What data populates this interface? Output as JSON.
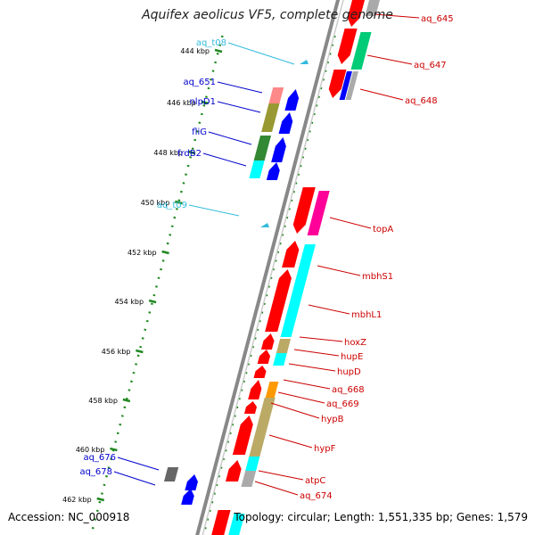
{
  "title": "Aquifex aeolicus VF5, complete genome",
  "footer": {
    "accession": "Accession: NC_000918",
    "topology": "Topology: circular; Length: 1,551,335 bp; Genes: 1,579"
  },
  "kbp_ticks": [
    "444 kbp",
    "446 kbp",
    "448 kbp",
    "450 kbp",
    "452 kbp",
    "454 kbp",
    "456 kbp",
    "458 kbp",
    "460 kbp",
    "462 kbp"
  ],
  "labels_right": [
    "aq_645",
    "aq_647",
    "aq_648",
    "topA",
    "mbhS1",
    "mbhL1",
    "hoxZ",
    "hupE",
    "hupD",
    "aq_668",
    "aq_669",
    "hypB",
    "hypF",
    "atpC",
    "aq_674"
  ],
  "labels_left": [
    "aq_t08",
    "aq_651",
    "nlpD1",
    "fliG",
    "frdB2",
    "aq_t09",
    "aq_676",
    "aq_678"
  ],
  "colors": {
    "right_label": "#cc0000",
    "left_label": "#0000cc",
    "trna_label": "#33bbdd",
    "forward_gene": "#ff0000",
    "reverse_gene": "#0000ff",
    "cog_cyan": "#00ffff",
    "cog_green": "#00cc77",
    "cog_magenta": "#ff0099",
    "cog_olive": "#999933",
    "cog_khaki": "#bbaa66",
    "cog_pink": "#ff8888",
    "cog_grey": "#aaaaaa",
    "cog_orange": "#ff9900",
    "backbone": "#888888",
    "tick": "#228822"
  }
}
